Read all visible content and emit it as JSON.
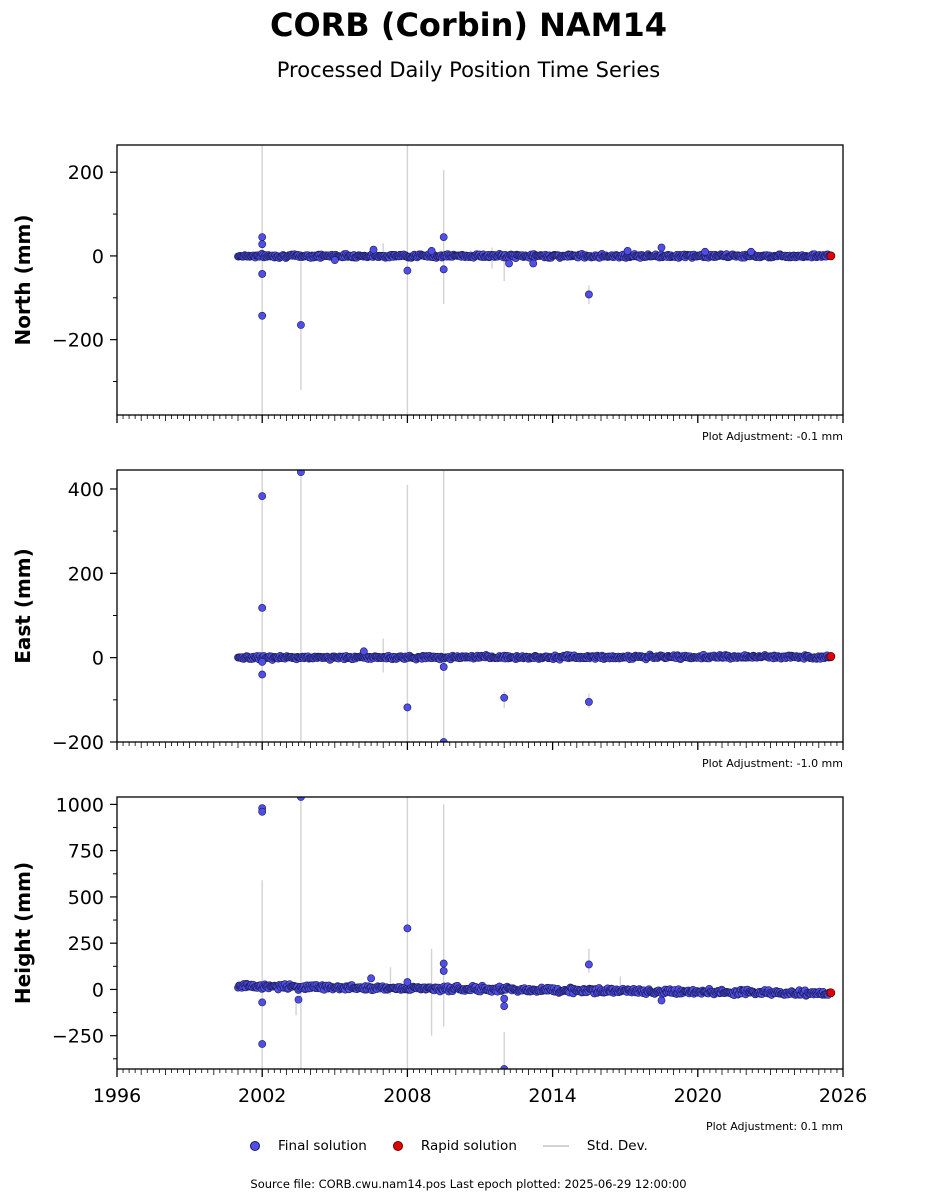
{
  "chart_data": {
    "type": "scatter",
    "title": "CORB (Corbin) NAM14",
    "subtitle": "Processed Daily Position Time Series",
    "x_ticks": [
      "1996",
      "2002",
      "2008",
      "2014",
      "2020",
      "2026"
    ],
    "x_range": [
      1996,
      2026
    ],
    "data_span": [
      2001.0,
      2025.5
    ],
    "legend": {
      "final": "Final solution",
      "rapid": "Rapid solution",
      "std": "Std. Dev.",
      "colors": {
        "final": "#4f4fe8",
        "rapid": "#e00000",
        "std": "#d3d3d3"
      }
    },
    "source_note": "Source file: CORB.cwu.nam14.pos  Last epoch plotted: 2025-06-29 12:00:00",
    "panels": [
      {
        "ylabel": "North (mm)",
        "adjustment": "Plot Adjustment: -0.1 mm",
        "ylim": [
          -380,
          265
        ],
        "yticks": [
          -200,
          0,
          200
        ],
        "trend_y0": 0,
        "trend_y1": 0,
        "noise": 3,
        "outliers": [
          [
            2002.0,
            45
          ],
          [
            2002.0,
            28
          ],
          [
            2002.0,
            -43
          ],
          [
            2002.0,
            -143
          ],
          [
            2003.6,
            -165
          ],
          [
            2008.0,
            -35
          ],
          [
            2009.0,
            12
          ],
          [
            2009.5,
            45
          ],
          [
            2009.5,
            -32
          ],
          [
            2006.6,
            15
          ],
          [
            2012.2,
            -18
          ],
          [
            2013.2,
            -18
          ],
          [
            2015.5,
            -92
          ],
          [
            2017.1,
            12
          ],
          [
            2018.5,
            20
          ],
          [
            2020.3,
            10
          ],
          [
            2022.2,
            10
          ],
          [
            2005.0,
            -10
          ]
        ],
        "stds": [
          [
            2002.0,
            -380,
            265
          ],
          [
            2003.6,
            -320,
            -10
          ],
          [
            2008.0,
            -380,
            265
          ],
          [
            2009.5,
            -115,
            205
          ],
          [
            2015.5,
            -115,
            -70
          ],
          [
            2007.0,
            -10,
            30
          ],
          [
            2012.0,
            -60,
            10
          ],
          [
            2011.5,
            -30,
            20
          ]
        ],
        "rapid": [
          2025.5,
          0
        ]
      },
      {
        "ylabel": "East (mm)",
        "adjustment": "Plot Adjustment: -1.0 mm",
        "ylim": [
          -200,
          445
        ],
        "yticks": [
          -200,
          0,
          200,
          400
        ],
        "trend_y0": 0,
        "trend_y1": 2,
        "noise": 3,
        "outliers": [
          [
            2002.0,
            383
          ],
          [
            2002.0,
            118
          ],
          [
            2002.0,
            -40
          ],
          [
            2003.6,
            440
          ],
          [
            2008.0,
            -118
          ],
          [
            2009.5,
            -22
          ],
          [
            2009.5,
            -200
          ],
          [
            2012.0,
            -95
          ],
          [
            2015.5,
            -105
          ],
          [
            2006.2,
            15
          ],
          [
            2002.0,
            -10
          ]
        ],
        "stds": [
          [
            2002.0,
            -200,
            445
          ],
          [
            2003.6,
            -200,
            445
          ],
          [
            2008.0,
            -200,
            410
          ],
          [
            2009.5,
            -200,
            445
          ],
          [
            2012.0,
            -120,
            -80
          ],
          [
            2015.5,
            -120,
            -85
          ],
          [
            2007.0,
            -35,
            45
          ]
        ],
        "rapid": [
          2025.5,
          3
        ]
      },
      {
        "ylabel": "Height (mm)",
        "adjustment": "Plot Adjustment: 0.1 mm",
        "ylim": [
          -430,
          1040
        ],
        "yticks": [
          -250,
          0,
          250,
          500,
          750,
          1000
        ],
        "trend_y0": 18,
        "trend_y1": -22,
        "noise": 10,
        "outliers": [
          [
            2002.0,
            980
          ],
          [
            2002.0,
            960
          ],
          [
            2002.0,
            -70
          ],
          [
            2002.0,
            -295
          ],
          [
            2003.6,
            1040
          ],
          [
            2003.5,
            -55
          ],
          [
            2008.0,
            330
          ],
          [
            2008.0,
            40
          ],
          [
            2009.5,
            140
          ],
          [
            2009.5,
            100
          ],
          [
            2012.0,
            -90
          ],
          [
            2012.0,
            -50
          ],
          [
            2012.0,
            -430
          ],
          [
            2015.5,
            135
          ],
          [
            2018.5,
            -60
          ],
          [
            2006.5,
            60
          ]
        ],
        "stds": [
          [
            2002.0,
            -430,
            590
          ],
          [
            2003.6,
            -430,
            1040
          ],
          [
            2008.0,
            -430,
            1040
          ],
          [
            2009.0,
            -250,
            220
          ],
          [
            2009.5,
            -200,
            1000
          ],
          [
            2012.0,
            -430,
            -230
          ],
          [
            2015.5,
            90,
            220
          ],
          [
            2003.4,
            -140,
            -40
          ],
          [
            2007.3,
            -30,
            120
          ],
          [
            2016.8,
            -30,
            70
          ]
        ],
        "rapid": [
          2025.5,
          -18
        ]
      }
    ]
  }
}
